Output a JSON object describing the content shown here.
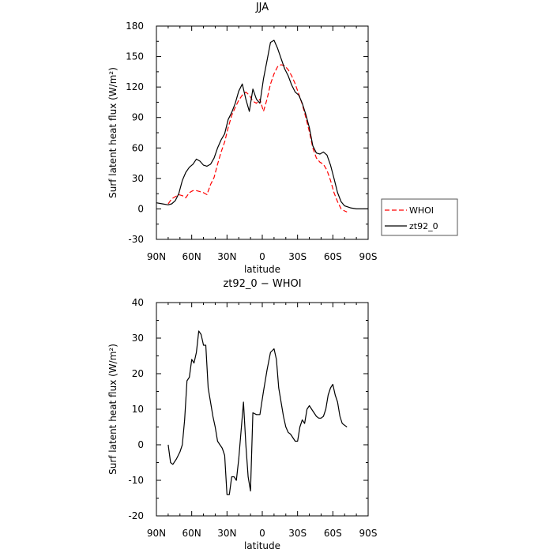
{
  "chart_data": [
    {
      "type": "line",
      "title": "JJA",
      "xlabel": "latitude",
      "ylabel": "Surf latent heat flux (W/m²)",
      "xlim": [
        -90,
        90
      ],
      "ylim": [
        -30,
        180
      ],
      "xticks": [
        -90,
        -60,
        -30,
        0,
        30,
        60,
        90
      ],
      "xticklabels": [
        "90N",
        "60N",
        "30N",
        "0",
        "30S",
        "60S",
        "90S"
      ],
      "yticks": [
        -30,
        0,
        30,
        60,
        90,
        120,
        150,
        180
      ],
      "legend_position": "outside-right",
      "series": [
        {
          "name": "WHOI",
          "color": "#ff0000",
          "style": "dashed",
          "x": [
            -80,
            -77,
            -74,
            -71,
            -68,
            -65,
            -62,
            -59,
            -56,
            -53,
            -50,
            -47,
            -44,
            -41,
            -38,
            -35,
            -32,
            -29,
            -26,
            -23,
            -20,
            -17,
            -14,
            -11,
            -8,
            -5,
            -2,
            1,
            4,
            7,
            10,
            13,
            16,
            19,
            22,
            25,
            28,
            31,
            34,
            37,
            40,
            43,
            46,
            49,
            52,
            55,
            58,
            61,
            64,
            67,
            70,
            72
          ],
          "y": [
            5,
            10,
            12,
            14,
            13,
            11,
            16,
            18,
            18,
            17,
            16,
            14,
            24,
            31,
            44,
            56,
            66,
            80,
            92,
            100,
            107,
            112,
            115,
            112,
            106,
            104,
            108,
            96,
            108,
            123,
            133,
            140,
            142,
            141,
            137,
            131,
            123,
            113,
            103,
            90,
            76,
            60,
            50,
            46,
            44,
            38,
            28,
            16,
            7,
            0,
            -2,
            -3
          ]
        },
        {
          "name": "zt92_0",
          "color": "#000000",
          "style": "solid",
          "x": [
            -90,
            -85,
            -80,
            -77,
            -74,
            -71,
            -68,
            -65,
            -62,
            -59,
            -56,
            -53,
            -50,
            -47,
            -44,
            -41,
            -38,
            -35,
            -32,
            -29,
            -26,
            -23,
            -20,
            -17,
            -14,
            -11,
            -8,
            -5,
            -2,
            1,
            4,
            7,
            10,
            13,
            16,
            19,
            22,
            25,
            28,
            31,
            34,
            37,
            40,
            43,
            46,
            49,
            52,
            55,
            58,
            61,
            64,
            67,
            70,
            75,
            80,
            85,
            90
          ],
          "y": [
            6,
            5,
            4,
            5,
            8,
            15,
            28,
            36,
            41,
            44,
            49,
            47,
            43,
            42,
            44,
            50,
            60,
            68,
            74,
            88,
            95,
            104,
            116,
            123,
            108,
            96,
            118,
            108,
            104,
            128,
            146,
            164,
            166,
            158,
            148,
            138,
            131,
            122,
            115,
            112,
            104,
            93,
            80,
            62,
            55,
            54,
            56,
            53,
            43,
            30,
            16,
            7,
            3,
            1,
            0,
            0,
            0
          ]
        }
      ]
    },
    {
      "type": "line",
      "title": "zt92_0 − WHOI",
      "xlabel": "latitude",
      "ylabel": "Surf latent heat flux (W/m²)",
      "xlim": [
        -90,
        90
      ],
      "ylim": [
        -20,
        40
      ],
      "xticks": [
        -90,
        -60,
        -30,
        0,
        30,
        60,
        90
      ],
      "xticklabels": [
        "90N",
        "60N",
        "30N",
        "0",
        "30S",
        "60S",
        "90S"
      ],
      "yticks": [
        -20,
        -10,
        0,
        10,
        20,
        30,
        40
      ],
      "series": [
        {
          "color": "#000000",
          "style": "solid",
          "x": [
            -80,
            -78,
            -76,
            -73,
            -70,
            -68,
            -66,
            -64,
            -62,
            -60,
            -58,
            -56,
            -54,
            -52,
            -50,
            -48,
            -46,
            -44,
            -42,
            -40,
            -38,
            -36,
            -34,
            -32,
            -30,
            -28,
            -26,
            -24,
            -22,
            -20,
            -18,
            -16,
            -14,
            -12,
            -10,
            -8,
            -5,
            -2,
            1,
            4,
            7,
            10,
            12,
            14,
            16,
            18,
            20,
            22,
            24,
            26,
            28,
            30,
            32,
            34,
            36,
            38,
            40,
            42,
            44,
            46,
            48,
            50,
            52,
            54,
            56,
            58,
            60,
            62,
            64,
            66,
            68,
            70,
            72
          ],
          "y": [
            0,
            -5,
            -5.5,
            -4,
            -2,
            0,
            7,
            18,
            19,
            24,
            23,
            26,
            32,
            31,
            28,
            28,
            16,
            12,
            8,
            5,
            1,
            0,
            -1,
            -3,
            -14,
            -14,
            -9,
            -9,
            -10,
            -4,
            4,
            12,
            0,
            -9,
            -13,
            9,
            8.5,
            8.5,
            15,
            21,
            26,
            27,
            24,
            16,
            12,
            8,
            5,
            3.5,
            3,
            2,
            1,
            1,
            5,
            7,
            6,
            10,
            11,
            10,
            9,
            8,
            7.5,
            7.5,
            8,
            10,
            14,
            16,
            17,
            14,
            12,
            8,
            6,
            5.5,
            5
          ]
        }
      ]
    }
  ]
}
